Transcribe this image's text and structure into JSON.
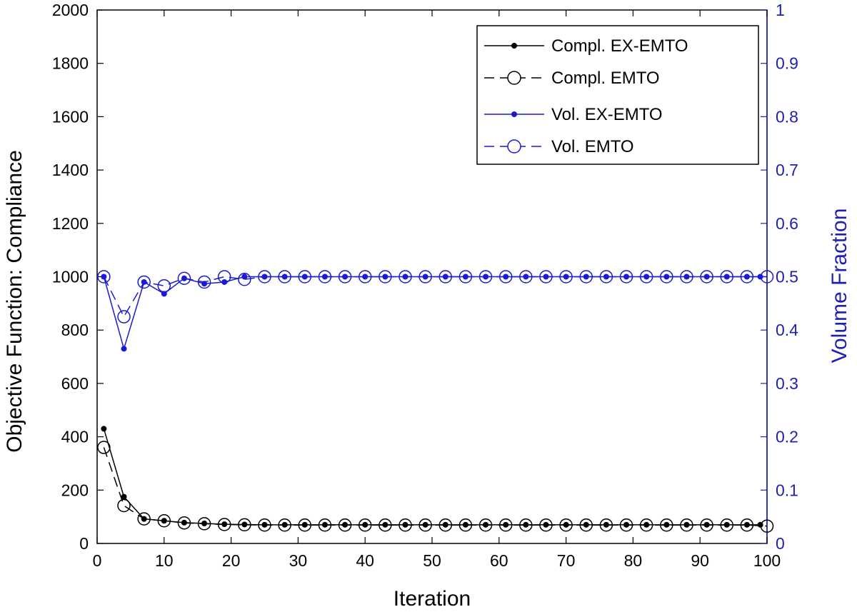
{
  "colors": {
    "left_axis": "#000000",
    "right_axis": "#1f1fb4",
    "blue_series": "#1a1ad6",
    "black_series": "#000000"
  },
  "chart_data": {
    "type": "line",
    "xlabel": "Iteration",
    "ylabel_left": "Objective Function: Compliance",
    "ylabel_right": "Volume Fraction",
    "xlim": [
      0,
      100
    ],
    "ylim_left": [
      0,
      2000
    ],
    "ylim_right": [
      0,
      1
    ],
    "x_ticks": [
      "0",
      "10",
      "20",
      "30",
      "40",
      "50",
      "60",
      "70",
      "80",
      "90",
      "100"
    ],
    "y_left_ticks": [
      "0",
      "200",
      "400",
      "600",
      "800",
      "1000",
      "1200",
      "1400",
      "1600",
      "1800",
      "2000"
    ],
    "y_right_ticks": [
      "0",
      "0.1",
      "0.2",
      "0.3",
      "0.4",
      "0.5",
      "0.6",
      "0.7",
      "0.8",
      "0.9",
      "1"
    ],
    "grid": false,
    "legend_position": "top-right",
    "series": [
      {
        "name": "Compl. EX-EMTO",
        "axis": "left",
        "line": "solid",
        "marker": "filled-dot",
        "color": "#000000",
        "x": [
          1,
          4,
          7,
          10,
          13,
          16,
          19,
          22,
          25,
          28,
          31,
          34,
          37,
          40,
          43,
          46,
          49,
          52,
          55,
          58,
          61,
          64,
          67,
          70,
          73,
          76,
          79,
          82,
          85,
          88,
          91,
          94,
          97,
          99
        ],
        "values": [
          430,
          175,
          92,
          85,
          78,
          75,
          72,
          71,
          70,
          70,
          70,
          70,
          70,
          70,
          70,
          70,
          70,
          70,
          70,
          70,
          70,
          70,
          70,
          70,
          70,
          70,
          70,
          70,
          70,
          70,
          70,
          70,
          70,
          70
        ]
      },
      {
        "name": "Compl. EMTO",
        "axis": "left",
        "line": "dashed",
        "marker": "open-circle",
        "color": "#000000",
        "x": [
          1,
          4,
          7,
          10,
          13,
          16,
          19,
          22,
          25,
          28,
          31,
          34,
          37,
          40,
          43,
          46,
          49,
          52,
          55,
          58,
          61,
          64,
          67,
          70,
          73,
          76,
          79,
          82,
          85,
          88,
          91,
          94,
          97,
          100
        ],
        "values": [
          360,
          142,
          92,
          85,
          77,
          74,
          71,
          70,
          69,
          69,
          69,
          69,
          69,
          69,
          69,
          69,
          69,
          69,
          69,
          69,
          69,
          69,
          69,
          69,
          69,
          69,
          69,
          69,
          69,
          69,
          69,
          69,
          69,
          65
        ]
      },
      {
        "name": "Vol. EX-EMTO",
        "axis": "right",
        "line": "solid",
        "marker": "filled-dot",
        "color": "#1a1ad6",
        "x": [
          1,
          4,
          7,
          10,
          13,
          16,
          19,
          22,
          25,
          28,
          31,
          34,
          37,
          40,
          43,
          46,
          49,
          52,
          55,
          58,
          61,
          64,
          67,
          70,
          73,
          76,
          79,
          82,
          85,
          88,
          91,
          94,
          97,
          99
        ],
        "values": [
          0.5,
          0.365,
          0.49,
          0.468,
          0.497,
          0.487,
          0.49,
          0.5,
          0.5,
          0.5,
          0.5,
          0.5,
          0.5,
          0.5,
          0.5,
          0.5,
          0.5,
          0.5,
          0.5,
          0.5,
          0.5,
          0.5,
          0.5,
          0.5,
          0.5,
          0.5,
          0.5,
          0.5,
          0.5,
          0.5,
          0.5,
          0.5,
          0.5,
          0.5
        ]
      },
      {
        "name": "Vol. EMTO",
        "axis": "right",
        "line": "dashed",
        "marker": "open-circle",
        "color": "#1a1ad6",
        "x": [
          1,
          4,
          7,
          10,
          13,
          16,
          19,
          22,
          25,
          28,
          31,
          34,
          37,
          40,
          43,
          46,
          49,
          52,
          55,
          58,
          61,
          64,
          67,
          70,
          73,
          76,
          79,
          82,
          85,
          88,
          91,
          94,
          97,
          100
        ],
        "values": [
          0.5,
          0.425,
          0.49,
          0.483,
          0.497,
          0.49,
          0.5,
          0.495,
          0.5,
          0.5,
          0.5,
          0.5,
          0.5,
          0.5,
          0.5,
          0.5,
          0.5,
          0.5,
          0.5,
          0.5,
          0.5,
          0.5,
          0.5,
          0.5,
          0.5,
          0.5,
          0.5,
          0.5,
          0.5,
          0.5,
          0.5,
          0.5,
          0.5,
          0.5
        ]
      }
    ]
  }
}
